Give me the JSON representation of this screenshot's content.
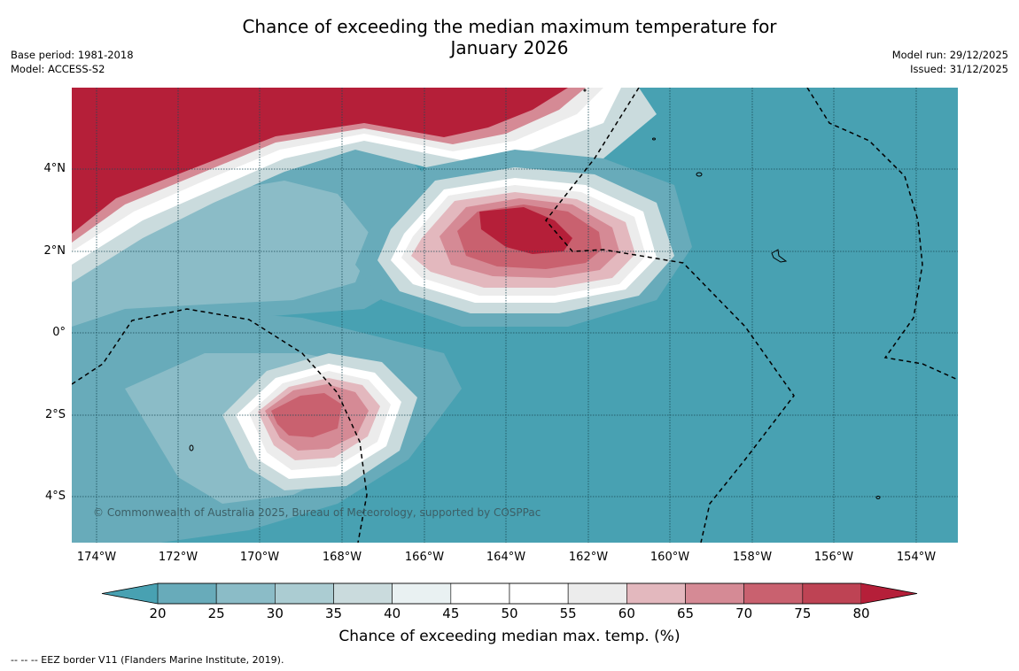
{
  "title_line1": "Chance of exceeding the median maximum temperature for",
  "title_line2": "January 2026",
  "base_period": "Base period: 1981-2018",
  "model": "Model: ACCESS-S2",
  "model_run": "Model run: 29/12/2025",
  "issued": "Issued: 31/12/2025",
  "copyright": "© Commonwealth of Australia 2025, Bureau of Meteorology, supported by COSPPac",
  "lat_labels": [
    "4°N",
    "2°N",
    "0°",
    "2°S",
    "4°S"
  ],
  "lon_labels": [
    "174°W",
    "172°W",
    "170°W",
    "168°W",
    "166°W",
    "164°W",
    "162°W",
    "160°W",
    "158°W",
    "156°W",
    "154°W"
  ],
  "colorbar": {
    "ticks": [
      "20",
      "25",
      "30",
      "35",
      "40",
      "45",
      "50",
      "55",
      "60",
      "65",
      "70",
      "75",
      "80"
    ],
    "label": "Chance of exceeding median max. temp. (%)",
    "colors": [
      "#48a1b2",
      "#68abba",
      "#8bbcc7",
      "#abccd2",
      "#cadbdd",
      "#e9f1f2",
      "#ffffff",
      "#ffffff",
      "#ececec",
      "#e3b8be",
      "#d58a95",
      "#c9616f",
      "#be4354",
      "#b51f39"
    ]
  },
  "footnote": "--  --  -- EEZ border V11 (Flanders Marine Institute, 2019)."
}
